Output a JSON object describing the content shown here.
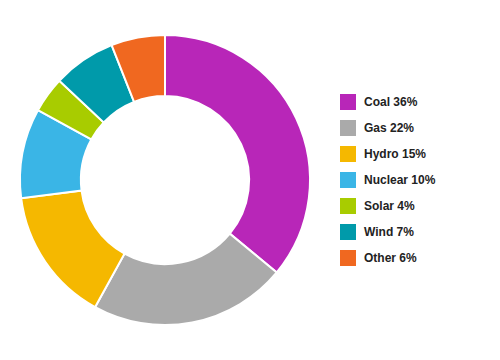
{
  "chart_data": {
    "type": "donut",
    "categories": [
      "Coal 36%",
      "Gas 22%",
      "Hydro 15%",
      "Nuclear 10%",
      "Solar 4%",
      "Wind 7%",
      "Other 6%"
    ],
    "values": [
      36,
      22,
      15,
      10,
      4,
      7,
      6
    ],
    "colors": [
      "#b826b8",
      "#aaaaaa",
      "#f5b800",
      "#3ab5e6",
      "#a8cc00",
      "#009aaa",
      "#f06820"
    ],
    "legend": "right"
  }
}
